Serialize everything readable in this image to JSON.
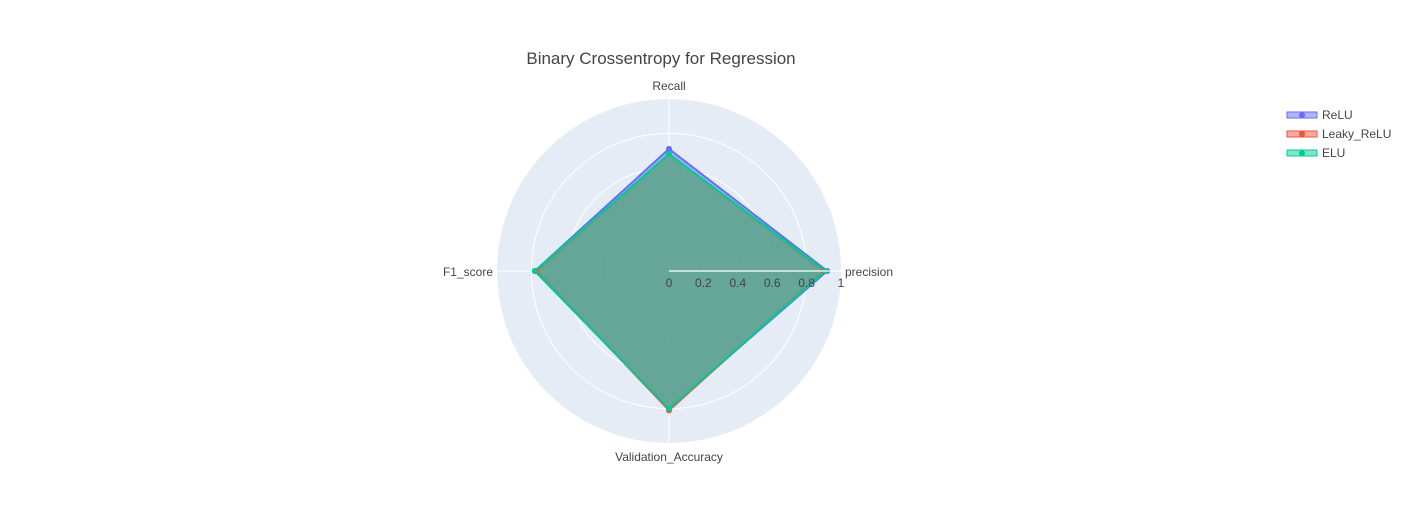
{
  "chart_data": {
    "type": "radar",
    "title": "Binary Crossentropy for Regression",
    "categories": [
      "precision",
      "Recall",
      "F1_score",
      "Validation_Accuracy"
    ],
    "radial_range": [
      0,
      1
    ],
    "radial_ticks": [
      "0",
      "0.2",
      "0.4",
      "0.6",
      "0.8",
      "1"
    ],
    "grid": true,
    "legend_position": "top-right",
    "series": [
      {
        "name": "ReLU",
        "color": "#636efa",
        "values": [
          0.92,
          0.71,
          0.78,
          0.8
        ]
      },
      {
        "name": "Leaky_ReLU",
        "color": "#ef553b",
        "values": [
          0.9,
          0.68,
          0.77,
          0.81
        ]
      },
      {
        "name": "ELU",
        "color": "#00cc96",
        "values": [
          0.91,
          0.68,
          0.78,
          0.8
        ]
      }
    ]
  }
}
